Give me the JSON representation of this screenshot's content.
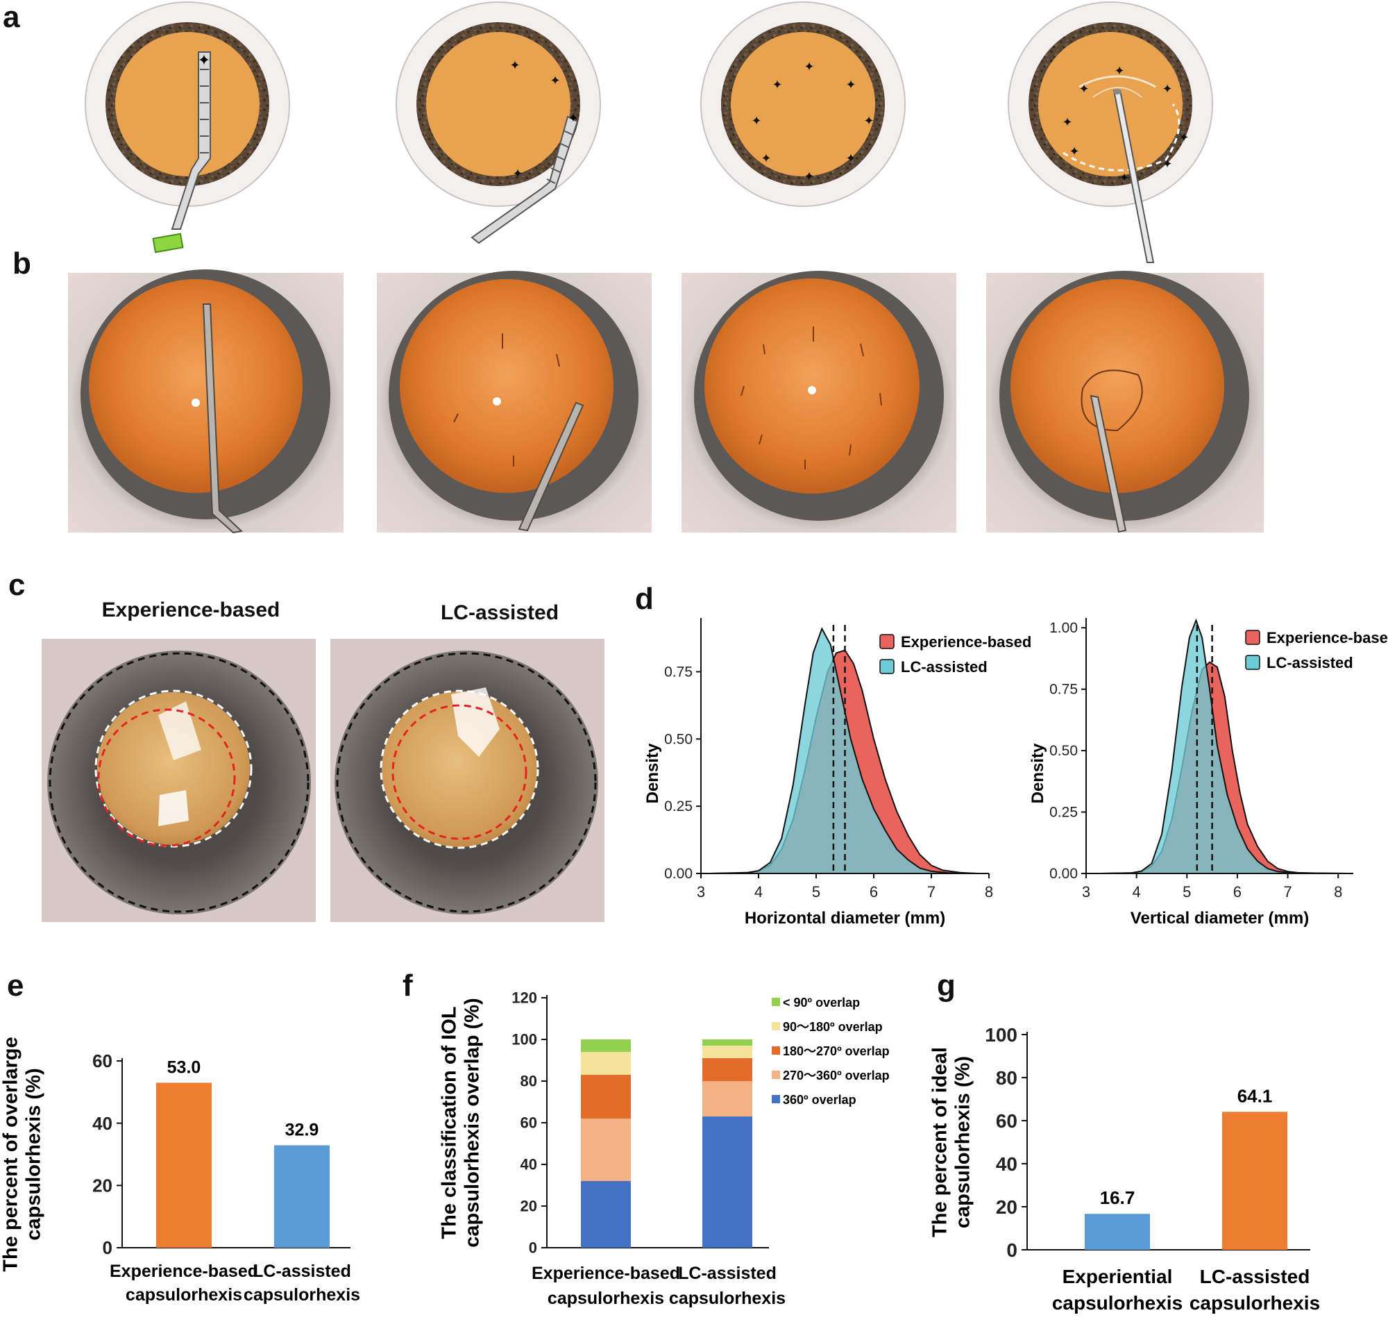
{
  "panels": {
    "a": "a",
    "b": "b",
    "c": "c",
    "d": "d",
    "e": "e",
    "f": "f",
    "g": "g"
  },
  "panel_c": {
    "left_title": "Experience-based",
    "right_title": "LC-assisted"
  },
  "colors": {
    "pupil": "#E9A24F",
    "iris": "#5A4634",
    "sclera": "#F3EEEE",
    "eye_photo_orange": "#E27A2A",
    "orange_bar": "#ED7D31",
    "blue_bar": "#5B9BD5",
    "density_red": "#E8645D",
    "density_cyan": "#6CCCD6",
    "stack_360": "#4472C4",
    "stack_270_360": "#F4B183",
    "stack_180_270": "#E46C2A",
    "stack_90_180": "#F5E29B",
    "stack_lt90": "#92D050"
  },
  "chart_data": [
    {
      "id": "d-left",
      "type": "area",
      "xlabel": "Horizontal diameter (mm)",
      "ylabel": "Density",
      "xlim": [
        3,
        8
      ],
      "ylim": [
        0,
        0.95
      ],
      "xticks": [
        "3",
        "4",
        "5",
        "6",
        "7",
        "8"
      ],
      "yticks": [
        "0.00",
        "0.25",
        "0.50",
        "0.75"
      ],
      "legend": [
        "Experience-based",
        "LC-assisted"
      ],
      "vlines": [
        5.3,
        5.5
      ],
      "series": [
        {
          "name": "Experience-based",
          "color": "#E8645D",
          "mean": 5.5,
          "peak": 0.83,
          "x": [
            3.15,
            3.8,
            4.0,
            4.2,
            4.4,
            4.6,
            4.8,
            5.0,
            5.2,
            5.35,
            5.5,
            5.65,
            5.8,
            6.0,
            6.2,
            6.4,
            6.6,
            6.8,
            7.0,
            7.2,
            7.5,
            7.8
          ],
          "y": [
            0.0,
            0.003,
            0.01,
            0.03,
            0.09,
            0.2,
            0.38,
            0.58,
            0.75,
            0.82,
            0.83,
            0.78,
            0.68,
            0.5,
            0.35,
            0.23,
            0.14,
            0.07,
            0.03,
            0.012,
            0.003,
            0.0
          ]
        },
        {
          "name": "LC-assisted",
          "color": "#6CCCD6",
          "mean": 5.3,
          "peak": 0.91,
          "x": [
            3.15,
            3.8,
            4.0,
            4.2,
            4.4,
            4.6,
            4.8,
            4.95,
            5.1,
            5.25,
            5.4,
            5.6,
            5.8,
            6.0,
            6.2,
            6.4,
            6.6,
            6.8,
            7.0,
            7.3,
            7.8
          ],
          "y": [
            0.0,
            0.002,
            0.01,
            0.04,
            0.13,
            0.33,
            0.62,
            0.82,
            0.91,
            0.85,
            0.7,
            0.5,
            0.35,
            0.24,
            0.16,
            0.09,
            0.05,
            0.02,
            0.008,
            0.002,
            0.0
          ]
        }
      ]
    },
    {
      "id": "d-right",
      "type": "area",
      "xlabel": "Vertical diameter (mm)",
      "ylabel": "Density",
      "xlim": [
        3,
        8.3
      ],
      "ylim": [
        0,
        1.04
      ],
      "xticks": [
        "3",
        "4",
        "5",
        "6",
        "7",
        "8"
      ],
      "yticks": [
        "0.00",
        "0.25",
        "0.50",
        "0.75",
        "1.00"
      ],
      "legend": [
        "Experience-based",
        "LC-assisted"
      ],
      "vlines": [
        5.2,
        5.5
      ],
      "series": [
        {
          "name": "Experience-based",
          "color": "#E8645D",
          "mean": 5.5,
          "peak": 0.86,
          "x": [
            3.3,
            3.9,
            4.1,
            4.3,
            4.5,
            4.7,
            4.9,
            5.1,
            5.3,
            5.45,
            5.6,
            5.75,
            5.9,
            6.05,
            6.2,
            6.4,
            6.6,
            6.8,
            7.0,
            7.2,
            7.6,
            8.2
          ],
          "y": [
            0.0,
            0.002,
            0.008,
            0.03,
            0.09,
            0.22,
            0.43,
            0.66,
            0.83,
            0.86,
            0.84,
            0.72,
            0.5,
            0.33,
            0.2,
            0.11,
            0.05,
            0.02,
            0.008,
            0.003,
            0.001,
            0.0
          ]
        },
        {
          "name": "LC-assisted",
          "color": "#6CCCD6",
          "mean": 5.2,
          "peak": 1.03,
          "x": [
            3.3,
            3.9,
            4.1,
            4.3,
            4.5,
            4.7,
            4.9,
            5.05,
            5.18,
            5.3,
            5.45,
            5.6,
            5.8,
            6.0,
            6.2,
            6.4,
            6.6,
            6.8,
            7.2,
            8.2
          ],
          "y": [
            0.0,
            0.002,
            0.01,
            0.04,
            0.16,
            0.42,
            0.76,
            0.96,
            1.03,
            0.96,
            0.75,
            0.52,
            0.32,
            0.19,
            0.1,
            0.05,
            0.02,
            0.008,
            0.001,
            0.0
          ]
        }
      ]
    },
    {
      "id": "e",
      "type": "bar",
      "title": "",
      "ylabel": "The percent of overlarge capsulorhexis (%)",
      "ylabel_lines": [
        "The percent of overlarge",
        "capsulorhexis (%)"
      ],
      "ylim": [
        0,
        60
      ],
      "yticks": [
        "0",
        "20",
        "40",
        "60"
      ],
      "categories": [
        "Experience-based capsulorhexis",
        "LC-assisted capsulorhexis"
      ],
      "category_lines": [
        [
          "Experience-based",
          "capsulorhexis"
        ],
        [
          "LC-assisted",
          "capsulorhexis"
        ]
      ],
      "values": [
        53.0,
        32.9
      ],
      "labels": [
        "53.0",
        "32.9"
      ],
      "colors": [
        "#ED7D31",
        "#5B9BD5"
      ]
    },
    {
      "id": "f",
      "type": "bar",
      "stacked": true,
      "ylabel": "The classification of IOL capsulorhexis overlap (%)",
      "ylabel_lines": [
        "The classification of IOL",
        "capsulorhexis overlap (%)"
      ],
      "ylim": [
        0,
        120
      ],
      "yticks": [
        "0",
        "20",
        "40",
        "60",
        "80",
        "100",
        "120"
      ],
      "categories": [
        "Experience-based capsulorhexis",
        "LC-assisted capsulorhexis"
      ],
      "category_lines": [
        [
          "Experience-based",
          "capsulorhexis"
        ],
        [
          "LC-assisted",
          "capsulorhexis"
        ]
      ],
      "series": [
        {
          "name": "360º overlap",
          "color": "#4472C4",
          "values": [
            32,
            63
          ]
        },
        {
          "name": "270～360º overlap",
          "color": "#F4B183",
          "values": [
            30,
            17
          ]
        },
        {
          "name": "180～270º overlap",
          "color": "#E46C2A",
          "values": [
            21,
            11
          ]
        },
        {
          "name": "90～180º overlap",
          "color": "#F5E29B",
          "values": [
            11,
            6
          ]
        },
        {
          "name": "< 90º overlap",
          "color": "#92D050",
          "values": [
            6,
            3
          ]
        }
      ]
    },
    {
      "id": "g",
      "type": "bar",
      "ylabel": "The percent of ideal capsulorhexis (%)",
      "ylabel_lines": [
        "The percent of ideal",
        "capsulorhexis (%)"
      ],
      "ylim": [
        0,
        100
      ],
      "yticks": [
        "0",
        "20",
        "40",
        "60",
        "80",
        "100"
      ],
      "categories": [
        "Experiential capsulorhexis",
        "LC-assisted capsulorhexis"
      ],
      "category_lines": [
        [
          "Experiential",
          "capsulorhexis"
        ],
        [
          "LC-assisted",
          "capsulorhexis"
        ]
      ],
      "values": [
        16.7,
        64.1
      ],
      "labels": [
        "16.7",
        "64.1"
      ],
      "colors": [
        "#5B9BD5",
        "#ED7D31"
      ]
    }
  ]
}
